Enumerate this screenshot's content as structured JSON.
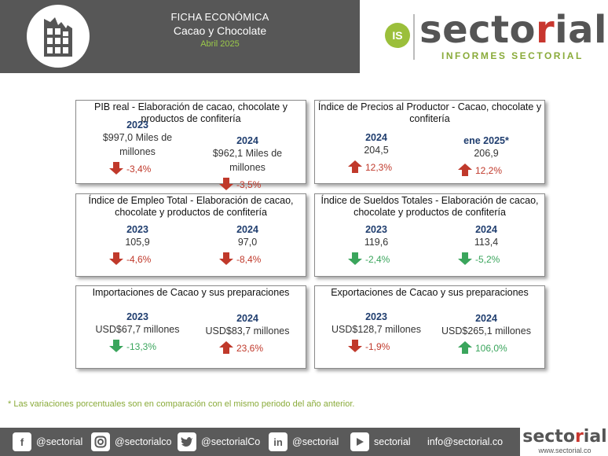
{
  "header": {
    "title": "FICHA ECONÓMICA",
    "subtitle": "Cacao y Chocolate",
    "date": "Abril 2025",
    "brand_prefix": "secto",
    "brand_accent": "r",
    "brand_suffix": "ial",
    "brand_badge": "IS",
    "brand_tagline": "INFORMES SECTORIAL"
  },
  "cards": [
    {
      "title": "PIB real - Elaboración de cacao, chocolate y productos de confitería",
      "left": {
        "year": "2023",
        "value_l1": "$997,0 Miles de",
        "value_l2": "millones",
        "change": "-3,4%",
        "direction": "down"
      },
      "right": {
        "year": "2024",
        "value_l1": "$962,1 Miles de",
        "value_l2": "millones",
        "change": "-3,5%",
        "direction": "down"
      }
    },
    {
      "title": "Índice de Precios al Productor - Cacao, chocolate y confitería",
      "left": {
        "year": "2024",
        "value_l1": "204,5",
        "value_l2": "",
        "change": "12,3%",
        "direction": "up"
      },
      "right": {
        "year": "ene 2025*",
        "value_l1": "206,9",
        "value_l2": "",
        "change": "12,2%",
        "direction": "up"
      }
    },
    {
      "title": "Índice de Empleo Total - Elaboración de cacao, chocolate y productos de confitería",
      "left": {
        "year": "2023",
        "value_l1": "105,9",
        "value_l2": "",
        "change": "-4,6%",
        "direction": "down"
      },
      "right": {
        "year": "2024",
        "value_l1": "97,0",
        "value_l2": "",
        "change": "-8,4%",
        "direction": "down"
      }
    },
    {
      "title": "Índice de Sueldos Totales - Elaboración de cacao, chocolate y productos de confitería",
      "left": {
        "year": "2023",
        "value_l1": "119,6",
        "value_l2": "",
        "change": "-2,4%",
        "direction": "down-green"
      },
      "right": {
        "year": "2024",
        "value_l1": "113,4",
        "value_l2": "",
        "change": "-5,2%",
        "direction": "down-green"
      }
    },
    {
      "title": "Importaciones de Cacao y sus preparaciones",
      "left": {
        "year": "2023",
        "value_l1": "USD$67,7 millones",
        "value_l2": "",
        "change": "-13,3%",
        "direction": "down-green"
      },
      "right": {
        "year": "2024",
        "value_l1": "USD$83,7 millones",
        "value_l2": "",
        "change": "23,6%",
        "direction": "up"
      }
    },
    {
      "title": "Exportaciones de Cacao y sus preparaciones",
      "left": {
        "year": "2023",
        "value_l1": "USD$128,7 millones",
        "value_l2": "",
        "change": "-1,9%",
        "direction": "down"
      },
      "right": {
        "year": "2024",
        "value_l1": "USD$265,1 millones",
        "value_l2": "",
        "change": "106,0%",
        "direction": "up-green"
      }
    }
  ],
  "footnote": "* Las variaciones porcentuales son en comparación con el mismo periodo del año anterior.",
  "footer": {
    "facebook": "@sectorial",
    "instagram": "@sectorialco",
    "twitter": "@sectorialCo",
    "linkedin": "@sectorial",
    "youtube": "sectorial",
    "email": "info@sectorial.co",
    "brand_prefix": "secto",
    "brand_accent": "r",
    "brand_suffix": "ial",
    "url": "www.sectorial.co"
  },
  "colors": {
    "red": "#c0392b",
    "green": "#3aa55c",
    "year_blue": "#1f3d6e",
    "header_gray": "#575757",
    "accent_green": "#9bc94a"
  }
}
